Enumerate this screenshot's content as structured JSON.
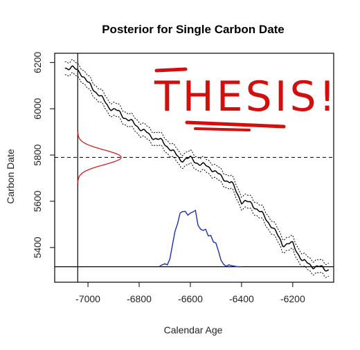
{
  "chart_data": {
    "type": "line",
    "title": "Posterior for Single Carbon Date",
    "xlabel": "Calendar Age",
    "ylabel": "Carbon Date",
    "xlim": [
      -7130,
      -6040
    ],
    "ylim": [
      5250,
      6240
    ],
    "xticks": [
      -7000,
      -6800,
      -6600,
      -6400,
      -6200
    ],
    "yticks": [
      5400,
      5600,
      5800,
      6000,
      6200
    ],
    "x_tick_labels": [
      "-7000",
      "-6800",
      "-6600",
      "-6400",
      "-6200"
    ],
    "y_tick_labels": [
      "5400",
      "5600",
      "5800",
      "6000",
      "6200"
    ],
    "grid": false,
    "observed_carbon_date": 5790,
    "observed_carbon_date_line": "dashed",
    "posterior_baseline": 5317,
    "vertical_reference_x": -7040,
    "calibration_curve": {
      "x": [
        -7090,
        -7060,
        -7030,
        -7000,
        -6960,
        -6920,
        -6880,
        -6840,
        -6800,
        -6760,
        -6720,
        -6680,
        -6640,
        -6600,
        -6560,
        -6520,
        -6480,
        -6440,
        -6400,
        -6360,
        -6320,
        -6280,
        -6240,
        -6200,
        -6160,
        -6120,
        -6080,
        -6060
      ],
      "y": [
        6180,
        6175,
        6160,
        6110,
        6065,
        6010,
        5985,
        5950,
        5920,
        5885,
        5865,
        5830,
        5780,
        5785,
        5760,
        5745,
        5705,
        5680,
        5600,
        5590,
        5545,
        5490,
        5415,
        5415,
        5340,
        5320,
        5310,
        5305
      ],
      "band_halfwidth": 28,
      "color": "#000000"
    },
    "prior_density": {
      "color": "#cc2020",
      "mean": 5790,
      "sd": 32,
      "peak_x": -6870,
      "base_x": -7040
    },
    "posterior_density": {
      "color": "#1a2fb0",
      "x": [
        -6720,
        -6700,
        -6690,
        -6680,
        -6670,
        -6660,
        -6650,
        -6640,
        -6630,
        -6620,
        -6610,
        -6600,
        -6590,
        -6580,
        -6570,
        -6560,
        -6550,
        -6540,
        -6530,
        -6520,
        -6510,
        -6500,
        -6490,
        -6480,
        -6470,
        -6460,
        -6450,
        -6440,
        -6420,
        -6400
      ],
      "y": [
        5320,
        5330,
        5325,
        5345,
        5415,
        5470,
        5500,
        5555,
        5550,
        5560,
        5540,
        5545,
        5560,
        5555,
        5500,
        5480,
        5470,
        5485,
        5445,
        5455,
        5425,
        5415,
        5390,
        5340,
        5330,
        5320,
        5325,
        5322,
        5318,
        5317
      ]
    },
    "annotations": [
      {
        "text": "THESIS!",
        "color": "#d40d0d"
      }
    ]
  }
}
